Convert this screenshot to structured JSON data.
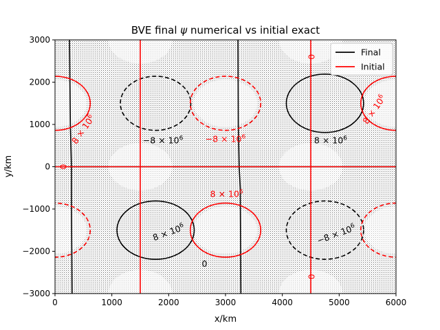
{
  "chart_data": {
    "type": "contour",
    "title": "BVE final ψ numerical vs initial exact",
    "title_parts": {
      "prefix": "BVE final ",
      "symbol": "ψ",
      "suffix": " numerical vs initial exact"
    },
    "xlabel": "x/km",
    "ylabel": "y/km",
    "xlim": [
      0,
      6000
    ],
    "ylim": [
      -3000,
      3000
    ],
    "xticks": [
      0,
      1000,
      2000,
      3000,
      4000,
      5000,
      6000
    ],
    "yticks": [
      -3000,
      -2000,
      -1000,
      0,
      1000,
      2000,
      3000
    ],
    "xtick_labels": [
      "0",
      "1000",
      "2000",
      "3000",
      "4000",
      "5000",
      "6000"
    ],
    "ytick_labels": [
      "−3000",
      "−2000",
      "−1000",
      "0",
      "1000",
      "2000",
      "3000"
    ],
    "legend": {
      "placement": "top-right",
      "entries": [
        {
          "label": "Final",
          "color": "#000000"
        },
        {
          "label": "Initial",
          "color": "#ff0000"
        }
      ]
    },
    "contour_levels": [
      -8000000,
      0,
      8000000
    ],
    "contour_label_text": {
      "pos": "8 × 10",
      "neg": "−8 × 10",
      "exp": "6",
      "zero": "0"
    },
    "series": [
      {
        "name": "Final",
        "color": "#000000",
        "ellipses": [
          {
            "cx": 1770,
            "cy": 1500,
            "rx": 620,
            "ry": 640,
            "level": -8000000
          },
          {
            "cx": 4750,
            "cy": 1500,
            "rx": 680,
            "ry": 690,
            "level": 8000000
          },
          {
            "cx": 1770,
            "cy": -1500,
            "rx": 680,
            "ry": 690,
            "level": 8000000
          },
          {
            "cx": 4750,
            "cy": -1500,
            "rx": 680,
            "ry": 690,
            "level": -8000000
          }
        ],
        "zero_lines": [
          [
            [
              300,
              -3000
            ],
            [
              290,
              -1000
            ],
            [
              290,
              0
            ],
            [
              270,
              1000
            ],
            [
              255,
              3000
            ]
          ],
          [
            [
              3270,
              -3000
            ],
            [
              3260,
              -500
            ],
            [
              3240,
              0
            ],
            [
              3225,
              1000
            ],
            [
              3220,
              3000
            ]
          ],
          [
            [
              255,
              0
            ],
            [
              6000,
              0
            ]
          ]
        ],
        "labels": [
          {
            "x": 1900,
            "y": 620,
            "kind": "neg",
            "rotate": 0
          },
          {
            "x": 4850,
            "y": 620,
            "kind": "pos",
            "rotate": 0
          },
          {
            "x": 2000,
            "y": -1560,
            "kind": "pos",
            "rotate": -20
          },
          {
            "x": 4950,
            "y": -1600,
            "kind": "neg",
            "rotate": -20
          },
          {
            "x": 2630,
            "y": -2300,
            "kind": "zero",
            "rotate": 0
          }
        ]
      },
      {
        "name": "Initial",
        "color": "#ff0000",
        "ellipses": [
          {
            "cx": 0,
            "cy": 1500,
            "rx": 620,
            "ry": 640,
            "level": 8000000
          },
          {
            "cx": 3000,
            "cy": 1500,
            "rx": 620,
            "ry": 640,
            "level": -8000000
          },
          {
            "cx": 6000,
            "cy": 1500,
            "rx": 620,
            "ry": 640,
            "level": 8000000
          },
          {
            "cx": 0,
            "cy": -1500,
            "rx": 620,
            "ry": 640,
            "level": -8000000
          },
          {
            "cx": 3000,
            "cy": -1500,
            "rx": 620,
            "ry": 640,
            "level": 8000000
          },
          {
            "cx": 6000,
            "cy": -1500,
            "rx": 620,
            "ry": 640,
            "level": -8000000
          }
        ],
        "zero_lines": [
          [
            [
              1500,
              -3000
            ],
            [
              1500,
              3000
            ]
          ],
          [
            [
              4500,
              -3000
            ],
            [
              4500,
              3000
            ]
          ],
          [
            [
              0,
              0
            ],
            [
              6000,
              0
            ]
          ]
        ],
        "labels": [
          {
            "x": 500,
            "y": 880,
            "kind": "pos",
            "rotate": -55
          },
          {
            "x": 3000,
            "y": 650,
            "kind": "neg",
            "rotate": 0
          },
          {
            "x": 5620,
            "y": 1350,
            "kind": "pos",
            "rotate": -55
          },
          {
            "x": 3020,
            "y": -650,
            "kind": "pos",
            "rotate": 0
          },
          {
            "x": 150,
            "y": 0,
            "kind": "zero",
            "rotate": -90
          },
          {
            "x": 4520,
            "y": 2600,
            "kind": "zero",
            "rotate": -90
          },
          {
            "x": 4520,
            "y": -2600,
            "kind": "zero",
            "rotate": -90
          }
        ]
      }
    ]
  }
}
